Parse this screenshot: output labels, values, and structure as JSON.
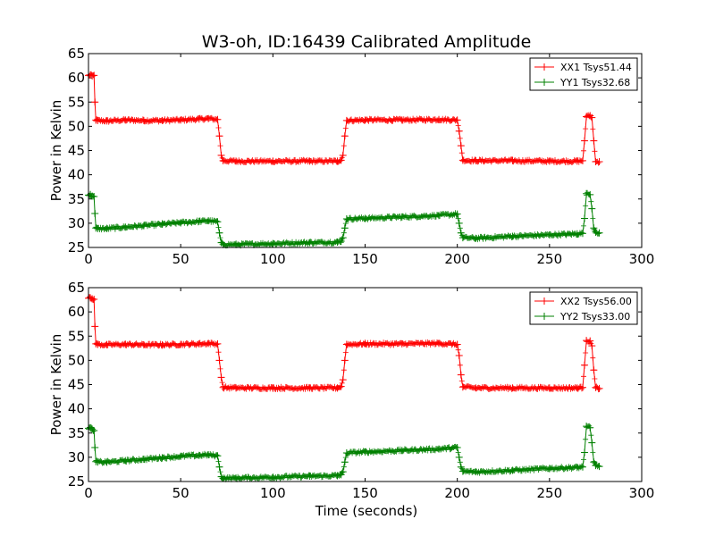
{
  "chart_data": {
    "title": "W3-oh, ID:16439 Calibrated Amplitude",
    "xlabel": "Time (seconds)",
    "ylabel": "Power in Kelvin",
    "panels": [
      {
        "type": "line",
        "xlim": [
          0,
          300
        ],
        "ylim": [
          25,
          65
        ],
        "xticks": [
          0,
          50,
          100,
          150,
          200,
          250,
          300
        ],
        "yticks": [
          25,
          30,
          35,
          40,
          45,
          50,
          55,
          60,
          65
        ],
        "legend_position": "top-right",
        "series": [
          {
            "name": "XX1 Tsys51.44",
            "color": "#ff0000",
            "x": [
              0,
              1,
              2,
              3,
              3.5,
              4,
              5,
              10,
              20,
              30,
              40,
              50,
              60,
              65,
              70,
              71,
              72,
              73,
              80,
              100,
              120,
              135,
              137,
              138,
              139,
              140,
              150,
              170,
              190,
              200,
              201,
              202,
              203,
              210,
              230,
              250,
              265,
              268,
              269,
              270,
              272,
              273,
              274,
              275,
              277
            ],
            "y": [
              60.5,
              60.6,
              60.4,
              60.5,
              55,
              51.3,
              51.2,
              51.1,
              51.3,
              51.2,
              51.2,
              51.3,
              51.5,
              51.6,
              51.4,
              48,
              44,
              42.9,
              42.8,
              42.8,
              42.8,
              42.8,
              43,
              44,
              48,
              51.2,
              51.3,
              51.3,
              51.4,
              51.3,
              49,
              46,
              43,
              42.9,
              42.9,
              42.8,
              42.8,
              42.9,
              47,
              52,
              52.2,
              51.8,
              47,
              42.7,
              42.7
            ]
          },
          {
            "name": "YY1 Tsys32.68",
            "color": "#008000",
            "x": [
              0,
              1,
              2,
              3,
              3.5,
              4,
              5,
              10,
              20,
              30,
              40,
              50,
              60,
              65,
              70,
              71,
              72,
              73,
              80,
              100,
              120,
              135,
              137,
              138,
              139,
              140,
              150,
              170,
              190,
              200,
              201,
              202,
              203,
              210,
              230,
              250,
              265,
              268,
              269,
              270,
              272,
              273,
              274,
              275,
              277
            ],
            "y": [
              35.8,
              35.9,
              35.6,
              35.5,
              32,
              29,
              28.9,
              28.9,
              29.2,
              29.5,
              29.8,
              30.1,
              30.4,
              30.5,
              30.3,
              28,
              26,
              25.6,
              25.6,
              25.8,
              26,
              26.1,
              26.3,
              27,
              29,
              30.9,
              31,
              31.3,
              31.6,
              31.9,
              30,
              28,
              27,
              26.9,
              27.3,
              27.6,
              27.8,
              27.9,
              31,
              36.1,
              35.9,
              33,
              29,
              28.2,
              28
            ]
          }
        ]
      },
      {
        "type": "line",
        "xlim": [
          0,
          300
        ],
        "ylim": [
          25,
          65
        ],
        "xticks": [
          0,
          50,
          100,
          150,
          200,
          250,
          300
        ],
        "yticks": [
          25,
          30,
          35,
          40,
          45,
          50,
          55,
          60,
          65
        ],
        "legend_position": "top-right",
        "series": [
          {
            "name": "XX2 Tsys56.00",
            "color": "#ff0000",
            "x": [
              0,
              1,
              2,
              3,
              3.5,
              4,
              5,
              10,
              20,
              30,
              40,
              50,
              60,
              65,
              70,
              71,
              72,
              73,
              80,
              100,
              120,
              135,
              137,
              138,
              139,
              140,
              150,
              170,
              190,
              200,
              201,
              202,
              203,
              210,
              230,
              250,
              265,
              268,
              269,
              270,
              272,
              273,
              274,
              275,
              277
            ],
            "y": [
              62.8,
              62.9,
              62.7,
              62.6,
              57,
              53.4,
              53.3,
              53.2,
              53.3,
              53.2,
              53.2,
              53.3,
              53.4,
              53.5,
              53.4,
              50,
              46.5,
              44.4,
              44.3,
              44.3,
              44.3,
              44.3,
              44.6,
              46,
              50,
              53.3,
              53.4,
              53.4,
              53.5,
              53.3,
              51,
              47,
              44.5,
              44.3,
              44.3,
              44.3,
              44.3,
              44.4,
              49,
              54.1,
              54,
              53,
              48,
              44.4,
              44.2
            ]
          },
          {
            "name": "YY2 Tsys33.00",
            "color": "#008000",
            "x": [
              0,
              1,
              2,
              3,
              3.5,
              4,
              5,
              10,
              20,
              30,
              40,
              50,
              60,
              65,
              70,
              71,
              72,
              73,
              80,
              100,
              120,
              135,
              137,
              138,
              139,
              140,
              150,
              170,
              190,
              200,
              201,
              202,
              203,
              210,
              230,
              250,
              265,
              268,
              269,
              270,
              272,
              273,
              274,
              275,
              277
            ],
            "y": [
              36,
              36.1,
              35.8,
              35.5,
              32,
              29.1,
              29,
              29,
              29.3,
              29.6,
              29.9,
              30.2,
              30.4,
              30.5,
              30.3,
              28,
              26,
              25.7,
              25.7,
              25.9,
              26.1,
              26.2,
              26.4,
              27,
              29,
              30.9,
              31.1,
              31.4,
              31.7,
              32,
              30,
              28,
              27.1,
              27,
              27.3,
              27.7,
              27.9,
              28,
              31,
              36.4,
              36.1,
              33,
              29,
              28.3,
              28.1
            ]
          }
        ]
      }
    ]
  }
}
